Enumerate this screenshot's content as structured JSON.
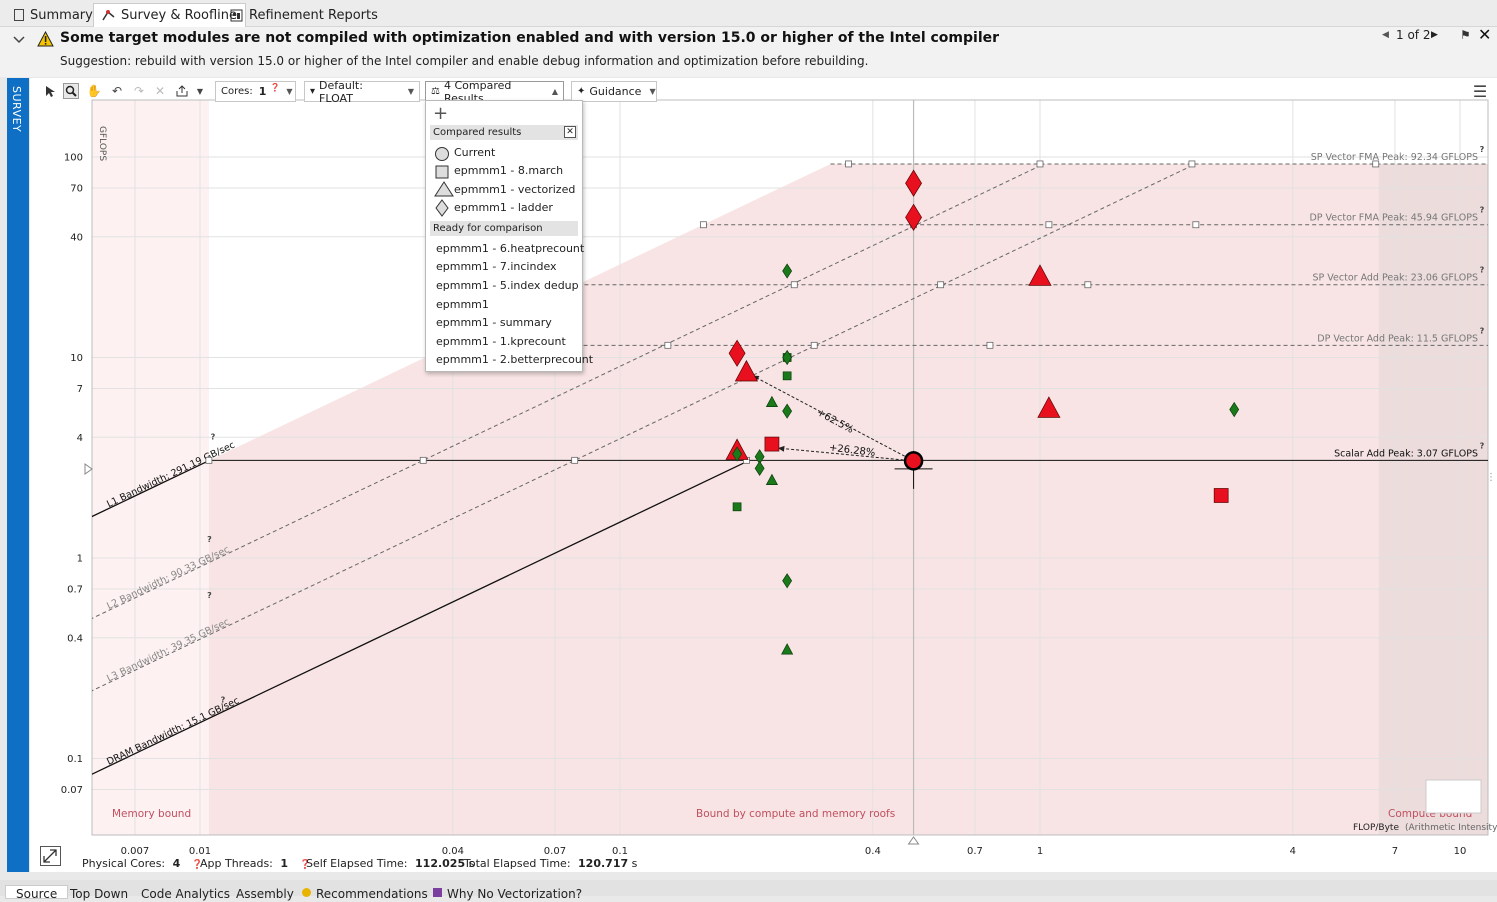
{
  "tabs": [
    {
      "label": "Summary",
      "icon": "summary-icon"
    },
    {
      "label": "Survey & Roofline",
      "icon": "roofline-icon"
    },
    {
      "label": "Refinement Reports",
      "icon": "refinement-icon"
    }
  ],
  "banner": {
    "warning": "Some target modules are not compiled with optimization enabled and with version 15.0 or higher of the Intel compiler",
    "suggestion": "Suggestion: rebuild with version 15.0 or higher of the Intel compiler and enable debug information and optimization before rebuilding.",
    "pager": "1 of 2"
  },
  "sidebar": {
    "label": "SURVEY"
  },
  "toolbar": {
    "cores_label": "Cores:",
    "cores_value": "1",
    "filter": "Default: FLOAT",
    "compare": "4 Compared Results",
    "guidance": "Guidance"
  },
  "dropdown": {
    "compared_header": "Compared results",
    "compared": [
      {
        "label": "Current",
        "symbol": "circle"
      },
      {
        "label": "epmmm1 - 8.march",
        "symbol": "square"
      },
      {
        "label": "epmmm1 - vectorized",
        "symbol": "triangle"
      },
      {
        "label": "epmmm1 - ladder",
        "symbol": "diamond"
      }
    ],
    "ready_header": "Ready for comparison",
    "ready": [
      "epmmm1 - 6.heatprecount",
      "epmmm1 - 7.incindex",
      "epmmm1 - 5.index dedup",
      "epmmm1",
      "epmmm1 - summary",
      "epmmm1 - 1.kprecount",
      "epmmm1 - 2.betterprecount"
    ]
  },
  "chart": {
    "y_axis_label": "GFLOPS",
    "x_axis_label": "FLOP/Byte",
    "x_axis_sub": "(Arithmetic Intensity)",
    "region_memory": "Memory bound",
    "region_both": "Bound by compute and memory roofs",
    "region_compute": "Compute bound",
    "y_ticks": [
      "100",
      "70",
      "40",
      "10",
      "7",
      "4",
      "1",
      "0.7",
      "0.4",
      "0.1",
      "0.07"
    ],
    "x_ticks": [
      "0.007",
      "0.01",
      "0.04",
      "0.07",
      "0.1",
      "0.4",
      "0.7",
      "1",
      "4",
      "7",
      "10"
    ],
    "delta_1": "+62.5%",
    "delta_2": "+26.28%"
  },
  "chart_data": {
    "type": "scatter",
    "title": "",
    "xlabel": "FLOP/Byte (Arithmetic Intensity)",
    "ylabel": "GFLOPS",
    "x_scale": "log",
    "y_scale": "log",
    "xlim": [
      0.005,
      14
    ],
    "ylim": [
      0.05,
      160
    ],
    "grid": true,
    "roofs": [
      {
        "name": "SP Vector FMA Peak: 92.34 GFLOPS",
        "gflops": 92.34,
        "style": "dashed"
      },
      {
        "name": "DP Vector FMA Peak: 45.94 GFLOPS",
        "gflops": 45.94,
        "style": "dashed"
      },
      {
        "name": "SP Vector Add Peak: 23.06 GFLOPS",
        "gflops": 23.06,
        "style": "dashed"
      },
      {
        "name": "DP Vector Add Peak: 11.5 GFLOPS",
        "gflops": 11.5,
        "style": "dashed"
      },
      {
        "name": "Scalar Add Peak: 3.07 GFLOPS",
        "gflops": 3.07,
        "style": "solid"
      }
    ],
    "bandwidths": [
      {
        "name": "L1 Bandwidth: 291.19 GB/sec",
        "gbps": 291.19,
        "style": "solid"
      },
      {
        "name": "L2 Bandwidth: 90.33 GB/sec",
        "gbps": 90.33,
        "style": "dashed"
      },
      {
        "name": "L3 Bandwidth: 39.35 GB/sec",
        "gbps": 39.35,
        "style": "dashed"
      },
      {
        "name": "DRAM Bandwidth: 15.1 GB/sec",
        "gbps": 15.1,
        "style": "solid"
      }
    ],
    "series": [
      {
        "name": "Current",
        "marker": "circle",
        "points": [
          {
            "x": 0.5,
            "y": 3.05,
            "color": "#e8101e",
            "size": "large"
          }
        ]
      },
      {
        "name": "epmmm1 - 8.march",
        "marker": "square",
        "points": [
          {
            "x": 0.23,
            "y": 3.7,
            "color": "#e8101e",
            "size": "large"
          },
          {
            "x": 2.7,
            "y": 2.05,
            "color": "#e8101e",
            "size": "large"
          },
          {
            "x": 0.25,
            "y": 10,
            "color": "#1a7a1a",
            "size": "small"
          },
          {
            "x": 0.25,
            "y": 8.1,
            "color": "#1a7a1a",
            "size": "small"
          },
          {
            "x": 0.19,
            "y": 1.8,
            "color": "#1a7a1a",
            "size": "small"
          }
        ]
      },
      {
        "name": "epmmm1 - vectorized",
        "marker": "triangle",
        "points": [
          {
            "x": 0.2,
            "y": 8.5,
            "color": "#e8101e",
            "size": "large"
          },
          {
            "x": 0.19,
            "y": 3.45,
            "color": "#e8101e",
            "size": "large"
          },
          {
            "x": 1.0,
            "y": 25.5,
            "color": "#e8101e",
            "size": "large"
          },
          {
            "x": 1.05,
            "y": 5.6,
            "color": "#e8101e",
            "size": "large"
          },
          {
            "x": 0.23,
            "y": 6.0,
            "color": "#1a7a1a",
            "size": "small"
          },
          {
            "x": 0.23,
            "y": 2.45,
            "color": "#1a7a1a",
            "size": "small"
          },
          {
            "x": 0.25,
            "y": 0.35,
            "color": "#1a7a1a",
            "size": "small"
          }
        ]
      },
      {
        "name": "epmmm1 - ladder",
        "marker": "diamond",
        "points": [
          {
            "x": 0.5,
            "y": 74,
            "color": "#e8101e",
            "size": "large"
          },
          {
            "x": 0.5,
            "y": 50,
            "color": "#e8101e",
            "size": "large"
          },
          {
            "x": 0.19,
            "y": 10.5,
            "color": "#e8101e",
            "size": "large"
          },
          {
            "x": 0.25,
            "y": 27,
            "color": "#1a7a1a",
            "size": "small"
          },
          {
            "x": 0.25,
            "y": 10,
            "color": "#1a7a1a",
            "size": "small"
          },
          {
            "x": 0.25,
            "y": 5.4,
            "color": "#1a7a1a",
            "size": "small"
          },
          {
            "x": 0.19,
            "y": 3.3,
            "color": "#1a7a1a",
            "size": "small"
          },
          {
            "x": 0.215,
            "y": 3.2,
            "color": "#1a7a1a",
            "size": "small"
          },
          {
            "x": 0.215,
            "y": 2.8,
            "color": "#1a7a1a",
            "size": "small"
          },
          {
            "x": 0.25,
            "y": 0.77,
            "color": "#1a7a1a",
            "size": "small"
          },
          {
            "x": 2.9,
            "y": 5.5,
            "color": "#1a7a1a",
            "size": "small"
          }
        ]
      }
    ],
    "arrows": [
      {
        "from": [
          0.5,
          3.05
        ],
        "to": [
          0.2,
          8.5
        ],
        "label": "+62.5%"
      },
      {
        "from": [
          0.5,
          3.05
        ],
        "to": [
          0.23,
          3.7
        ],
        "label": "+26.28%"
      }
    ]
  },
  "status": {
    "physical_cores_label": "Physical Cores:",
    "physical_cores": "4",
    "app_threads_label": "App Threads:",
    "app_threads": "1",
    "self_elapsed_label": "Self Elapsed Time:",
    "self_elapsed": "112.025",
    "total_elapsed_label": "Total Elapsed Time:",
    "total_elapsed": "120.717",
    "unit": "s"
  },
  "bottom_tabs": [
    "Source",
    "Top Down",
    "Code Analytics",
    "Assembly",
    "Recommendations",
    "Why No Vectorization?"
  ],
  "colors": {
    "accent": "#0e6fc5",
    "marker_red": "#e8101e",
    "marker_green": "#1a7a1a",
    "region_fill": "#f8e4e4"
  }
}
